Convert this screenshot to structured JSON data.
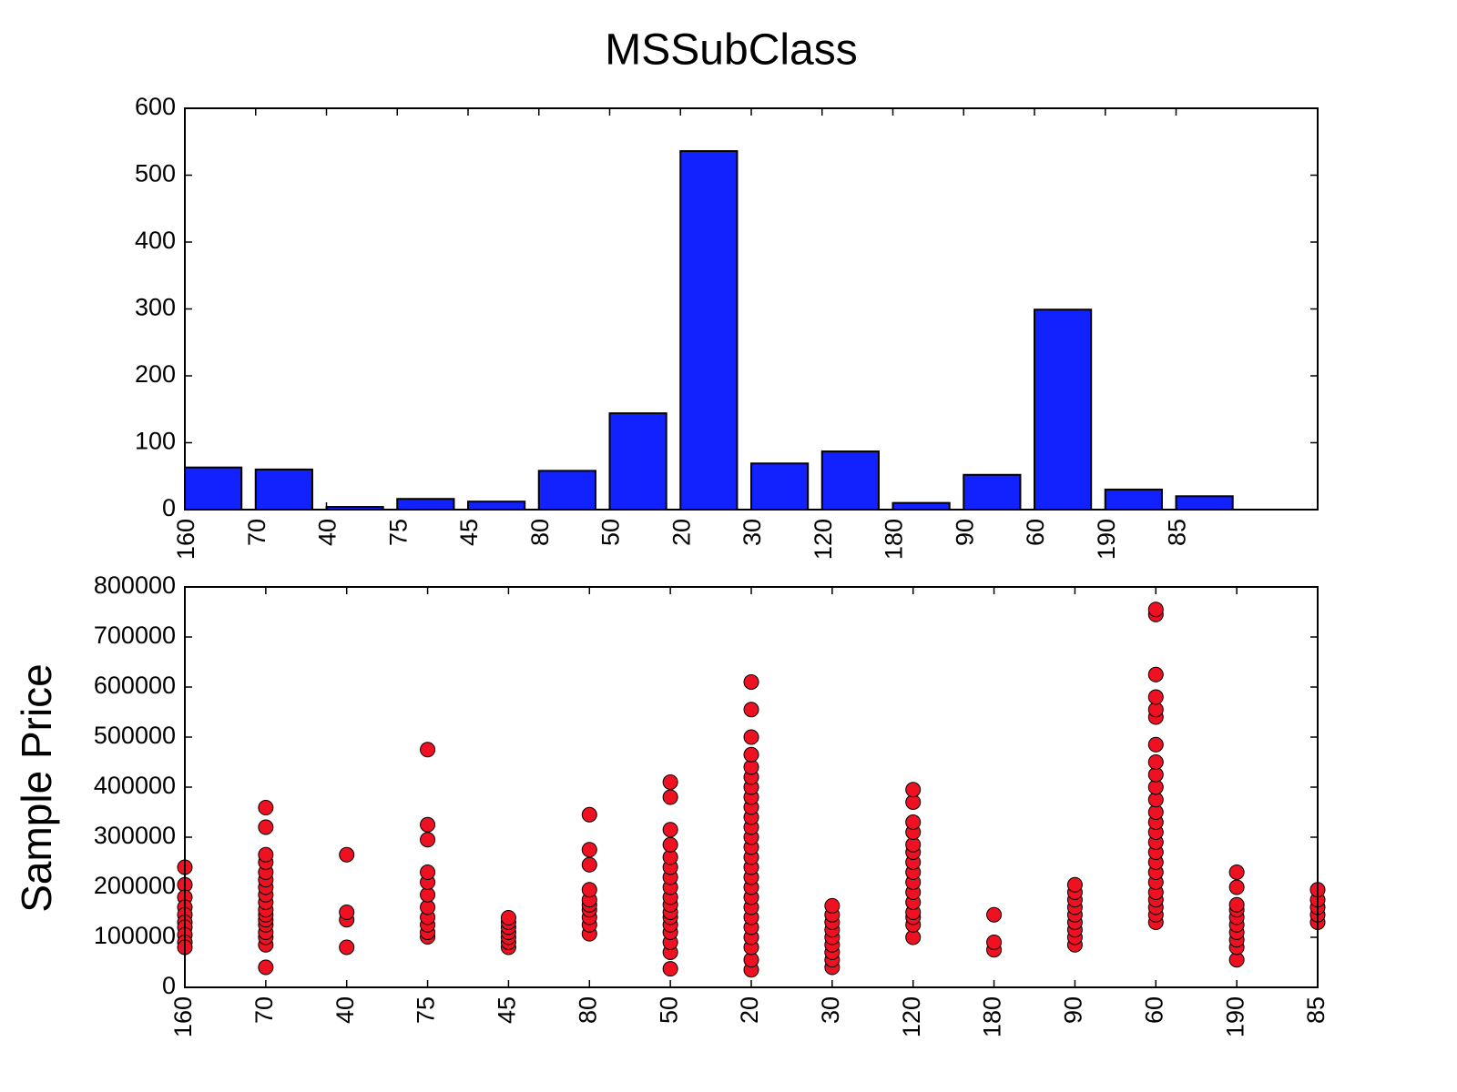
{
  "chart_data": [
    {
      "type": "bar",
      "title": "MSSubClass",
      "categories": [
        "160",
        "70",
        "40",
        "75",
        "45",
        "80",
        "50",
        "20",
        "30",
        "120",
        "180",
        "90",
        "60",
        "190",
        "85"
      ],
      "values": [
        63,
        60,
        4,
        16,
        12,
        58,
        144,
        536,
        69,
        87,
        10,
        52,
        299,
        30,
        20
      ],
      "color": "#1122ff",
      "ylim": [
        0,
        600
      ],
      "yticks": [
        0,
        100,
        200,
        300,
        400,
        500,
        600
      ]
    },
    {
      "type": "strip",
      "ylabel": "Sample Price",
      "categories": [
        "160",
        "70",
        "40",
        "75",
        "45",
        "80",
        "50",
        "20",
        "30",
        "120",
        "180",
        "90",
        "60",
        "190",
        "85"
      ],
      "values": [
        [
          240000,
          205000,
          180000,
          160000,
          145000,
          130000,
          120000,
          105000,
          90000,
          80000
        ],
        [
          40000,
          85000,
          100000,
          110000,
          125000,
          135000,
          145000,
          155000,
          170000,
          185000,
          200000,
          215000,
          230000,
          250000,
          265000,
          320000,
          359000
        ],
        [
          80000,
          135000,
          150000,
          265000
        ],
        [
          101000,
          110000,
          125000,
          140000,
          160000,
          185000,
          210000,
          230000,
          295000,
          325000,
          475000
        ],
        [
          80000,
          90000,
          100000,
          110000,
          120000,
          130000,
          139000
        ],
        [
          107000,
          125000,
          140000,
          155000,
          165000,
          175000,
          195000,
          245000,
          275000,
          345000
        ],
        [
          37000,
          70000,
          90000,
          110000,
          125000,
          140000,
          150000,
          165000,
          180000,
          200000,
          220000,
          240000,
          260000,
          285000,
          315000,
          380000,
          410000
        ],
        [
          35000,
          55000,
          80000,
          100000,
          120000,
          140000,
          160000,
          180000,
          200000,
          220000,
          240000,
          260000,
          280000,
          300000,
          320000,
          340000,
          360000,
          380000,
          400000,
          420000,
          440000,
          465000,
          500000,
          555000,
          610000
        ],
        [
          40000,
          55000,
          70000,
          85000,
          100000,
          115000,
          130000,
          145000,
          163000
        ],
        [
          100000,
          125000,
          140000,
          150000,
          170000,
          190000,
          210000,
          230000,
          250000,
          270000,
          285000,
          310000,
          330000,
          370000,
          395000
        ],
        [
          75000,
          90000,
          145000
        ],
        [
          85000,
          100000,
          115000,
          130000,
          145000,
          160000,
          175000,
          190000,
          205000
        ],
        [
          130000,
          145000,
          160000,
          175000,
          190000,
          210000,
          230000,
          250000,
          270000,
          290000,
          310000,
          330000,
          350000,
          375000,
          400000,
          425000,
          450000,
          485000,
          540000,
          555000,
          580000,
          625000,
          745000,
          755000
        ],
        [
          55000,
          80000,
          95000,
          110000,
          125000,
          140000,
          155000,
          165000,
          200000,
          230000
        ],
        [
          130000,
          145000,
          160000,
          175000,
          195000
        ]
      ],
      "color": "#ee1122",
      "ylim": [
        0,
        800000
      ],
      "yticks": [
        0,
        100000,
        200000,
        300000,
        400000,
        500000,
        600000,
        700000,
        800000
      ]
    }
  ]
}
